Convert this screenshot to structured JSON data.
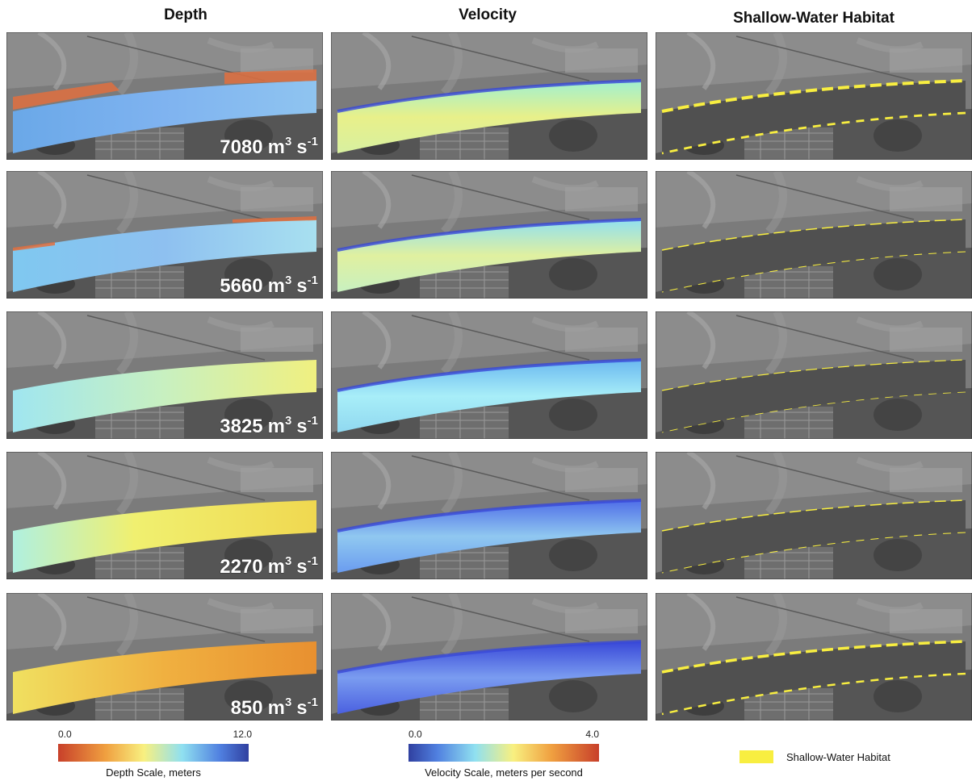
{
  "columns": [
    "Depth",
    "Velocity",
    "Shallow-Water Habitat"
  ],
  "discharges": [
    {
      "value": "7080",
      "unit1": "m",
      "exp1": "3",
      "unit2": "s",
      "exp2": "-1"
    },
    {
      "value": "5660",
      "unit1": "m",
      "exp1": "3",
      "unit2": "s",
      "exp2": "-1"
    },
    {
      "value": "3825",
      "unit1": "m",
      "exp1": "3",
      "unit2": "s",
      "exp2": "-1"
    },
    {
      "value": "2270",
      "unit1": "m",
      "exp1": "3",
      "unit2": "s",
      "exp2": "-1"
    },
    {
      "value": "850",
      "unit1": "m",
      "exp1": "3",
      "unit2": "s",
      "exp2": "-1"
    }
  ],
  "depth_scale": {
    "min": "0.0",
    "max": "12.0",
    "caption": "Depth Scale, meters"
  },
  "velocity_scale": {
    "min": "0.0",
    "max": "4.0",
    "caption": "Velocity Scale, meters per second"
  },
  "legend": {
    "label": "Shallow-Water Habitat"
  }
}
